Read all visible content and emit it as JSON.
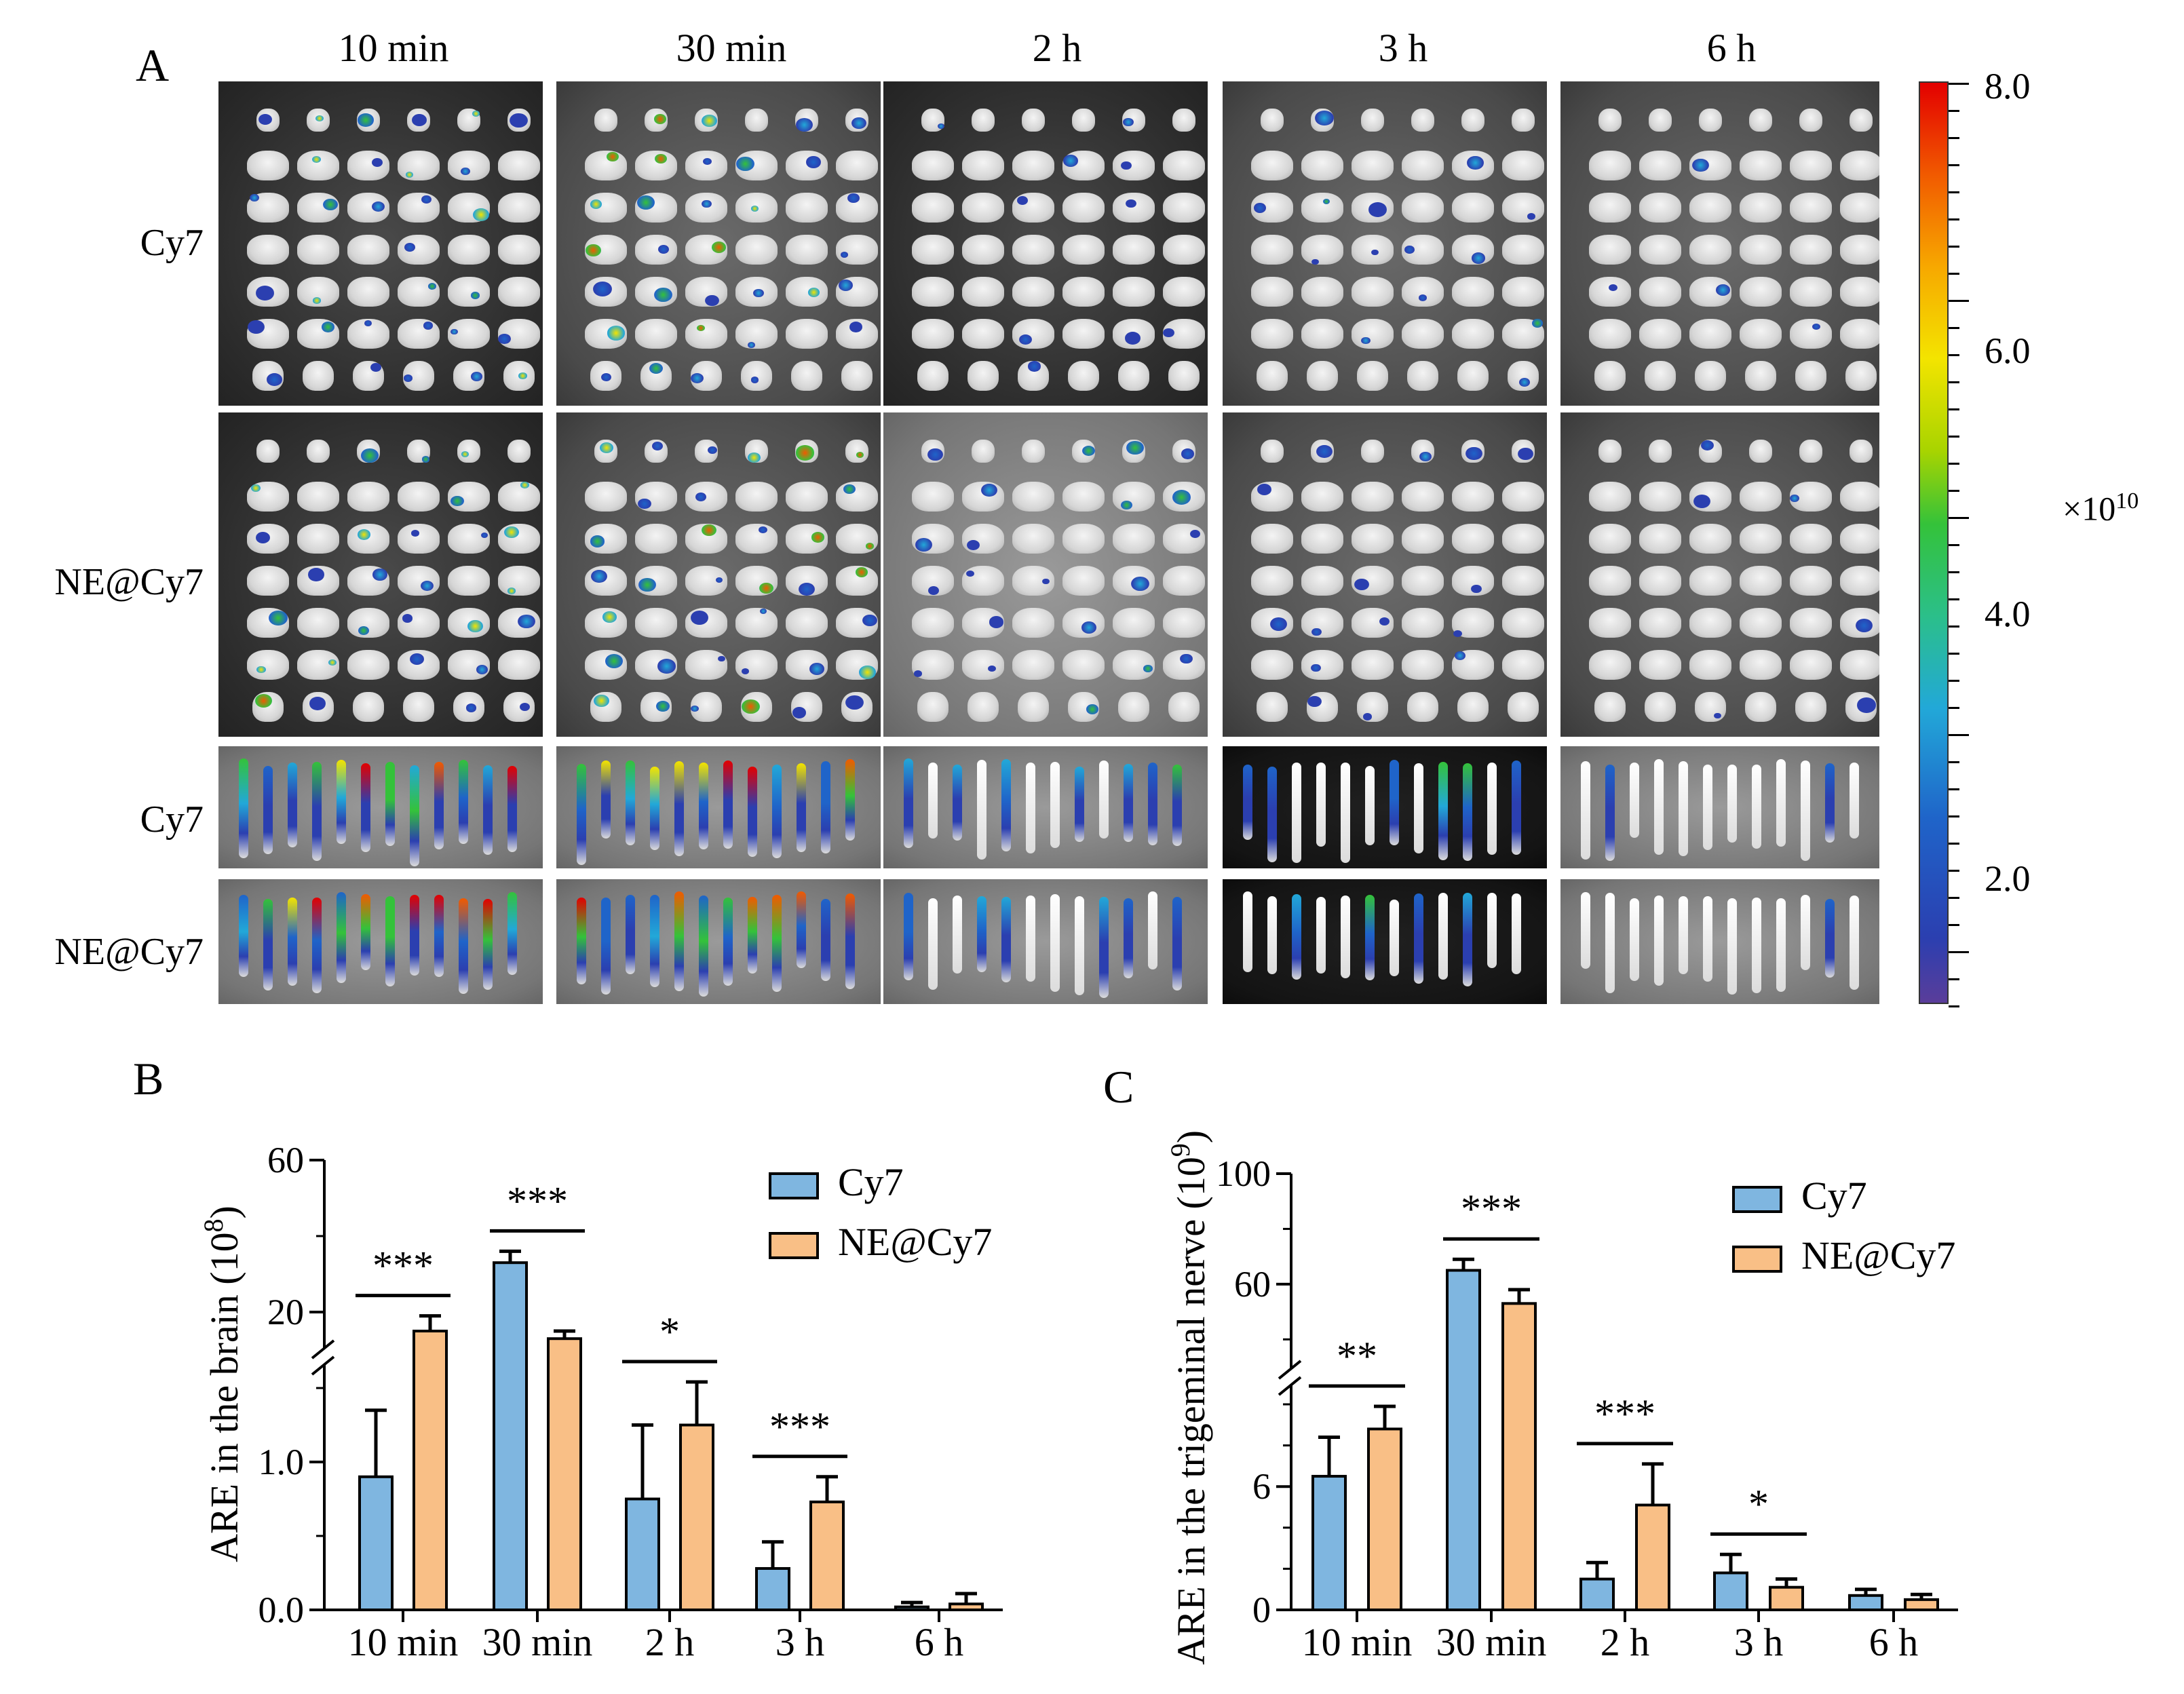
{
  "panel_labels": {
    "a": "A",
    "b": "B",
    "c": "C"
  },
  "panel_a": {
    "timepoints": [
      "10 min",
      "30 min",
      "2 h",
      "3 h",
      "6 h"
    ],
    "rows": [
      "Cy7",
      "NE@Cy7",
      "Cy7",
      "NE@Cy7"
    ],
    "colorbar": {
      "ticks": [
        "8.0",
        "6.0",
        "4.0",
        "2.0"
      ],
      "multiplier_base": "×10",
      "multiplier_exp": "10",
      "top_color": "#e30000",
      "bottom_color": "#5a3d9a"
    }
  },
  "chart_data": [
    {
      "type": "bar",
      "panel": "B",
      "ylabel": "ARE in the brain (10",
      "ylabel_exp": "8",
      "ylabel_close": ")",
      "categories": [
        "10 min",
        "30 min",
        "2 h",
        "3 h",
        "6 h"
      ],
      "yticks": [
        "0.0",
        "1.0",
        "20",
        "60"
      ],
      "axis_break": true,
      "series": [
        {
          "name": "Cy7",
          "color": "#7fb6e0",
          "values": [
            0.9,
            33,
            0.75,
            0.28,
            0.02
          ],
          "errors": [
            0.45,
            3,
            0.5,
            0.18,
            0.03
          ]
        },
        {
          "name": "NE@Cy7",
          "color": "#f9bf86",
          "values": [
            15,
            13,
            1.25,
            0.73,
            0.04
          ],
          "errors": [
            4,
            2,
            0.35,
            0.17,
            0.07
          ]
        }
      ],
      "significance": [
        "***",
        "***",
        "*",
        "***",
        ""
      ]
    },
    {
      "type": "bar",
      "panel": "C",
      "ylabel": "ARE in the trigeminal nerve (10",
      "ylabel_exp": "9",
      "ylabel_close": ")",
      "categories": [
        "10 min",
        "30 min",
        "2 h",
        "3 h",
        "6 h"
      ],
      "yticks": [
        "0",
        "6",
        "60",
        "100"
      ],
      "axis_break": true,
      "series": [
        {
          "name": "Cy7",
          "color": "#7fb6e0",
          "values": [
            6.5,
            65,
            1.5,
            1.8,
            0.7
          ],
          "errors": [
            1.9,
            4,
            0.8,
            0.9,
            0.3
          ]
        },
        {
          "name": "NE@Cy7",
          "color": "#f9bf86",
          "values": [
            8.8,
            53,
            5.1,
            1.1,
            0.5
          ],
          "errors": [
            1.1,
            5,
            2.0,
            0.4,
            0.25
          ]
        }
      ],
      "significance": [
        "**",
        "***",
        "***",
        "*",
        ""
      ]
    }
  ]
}
